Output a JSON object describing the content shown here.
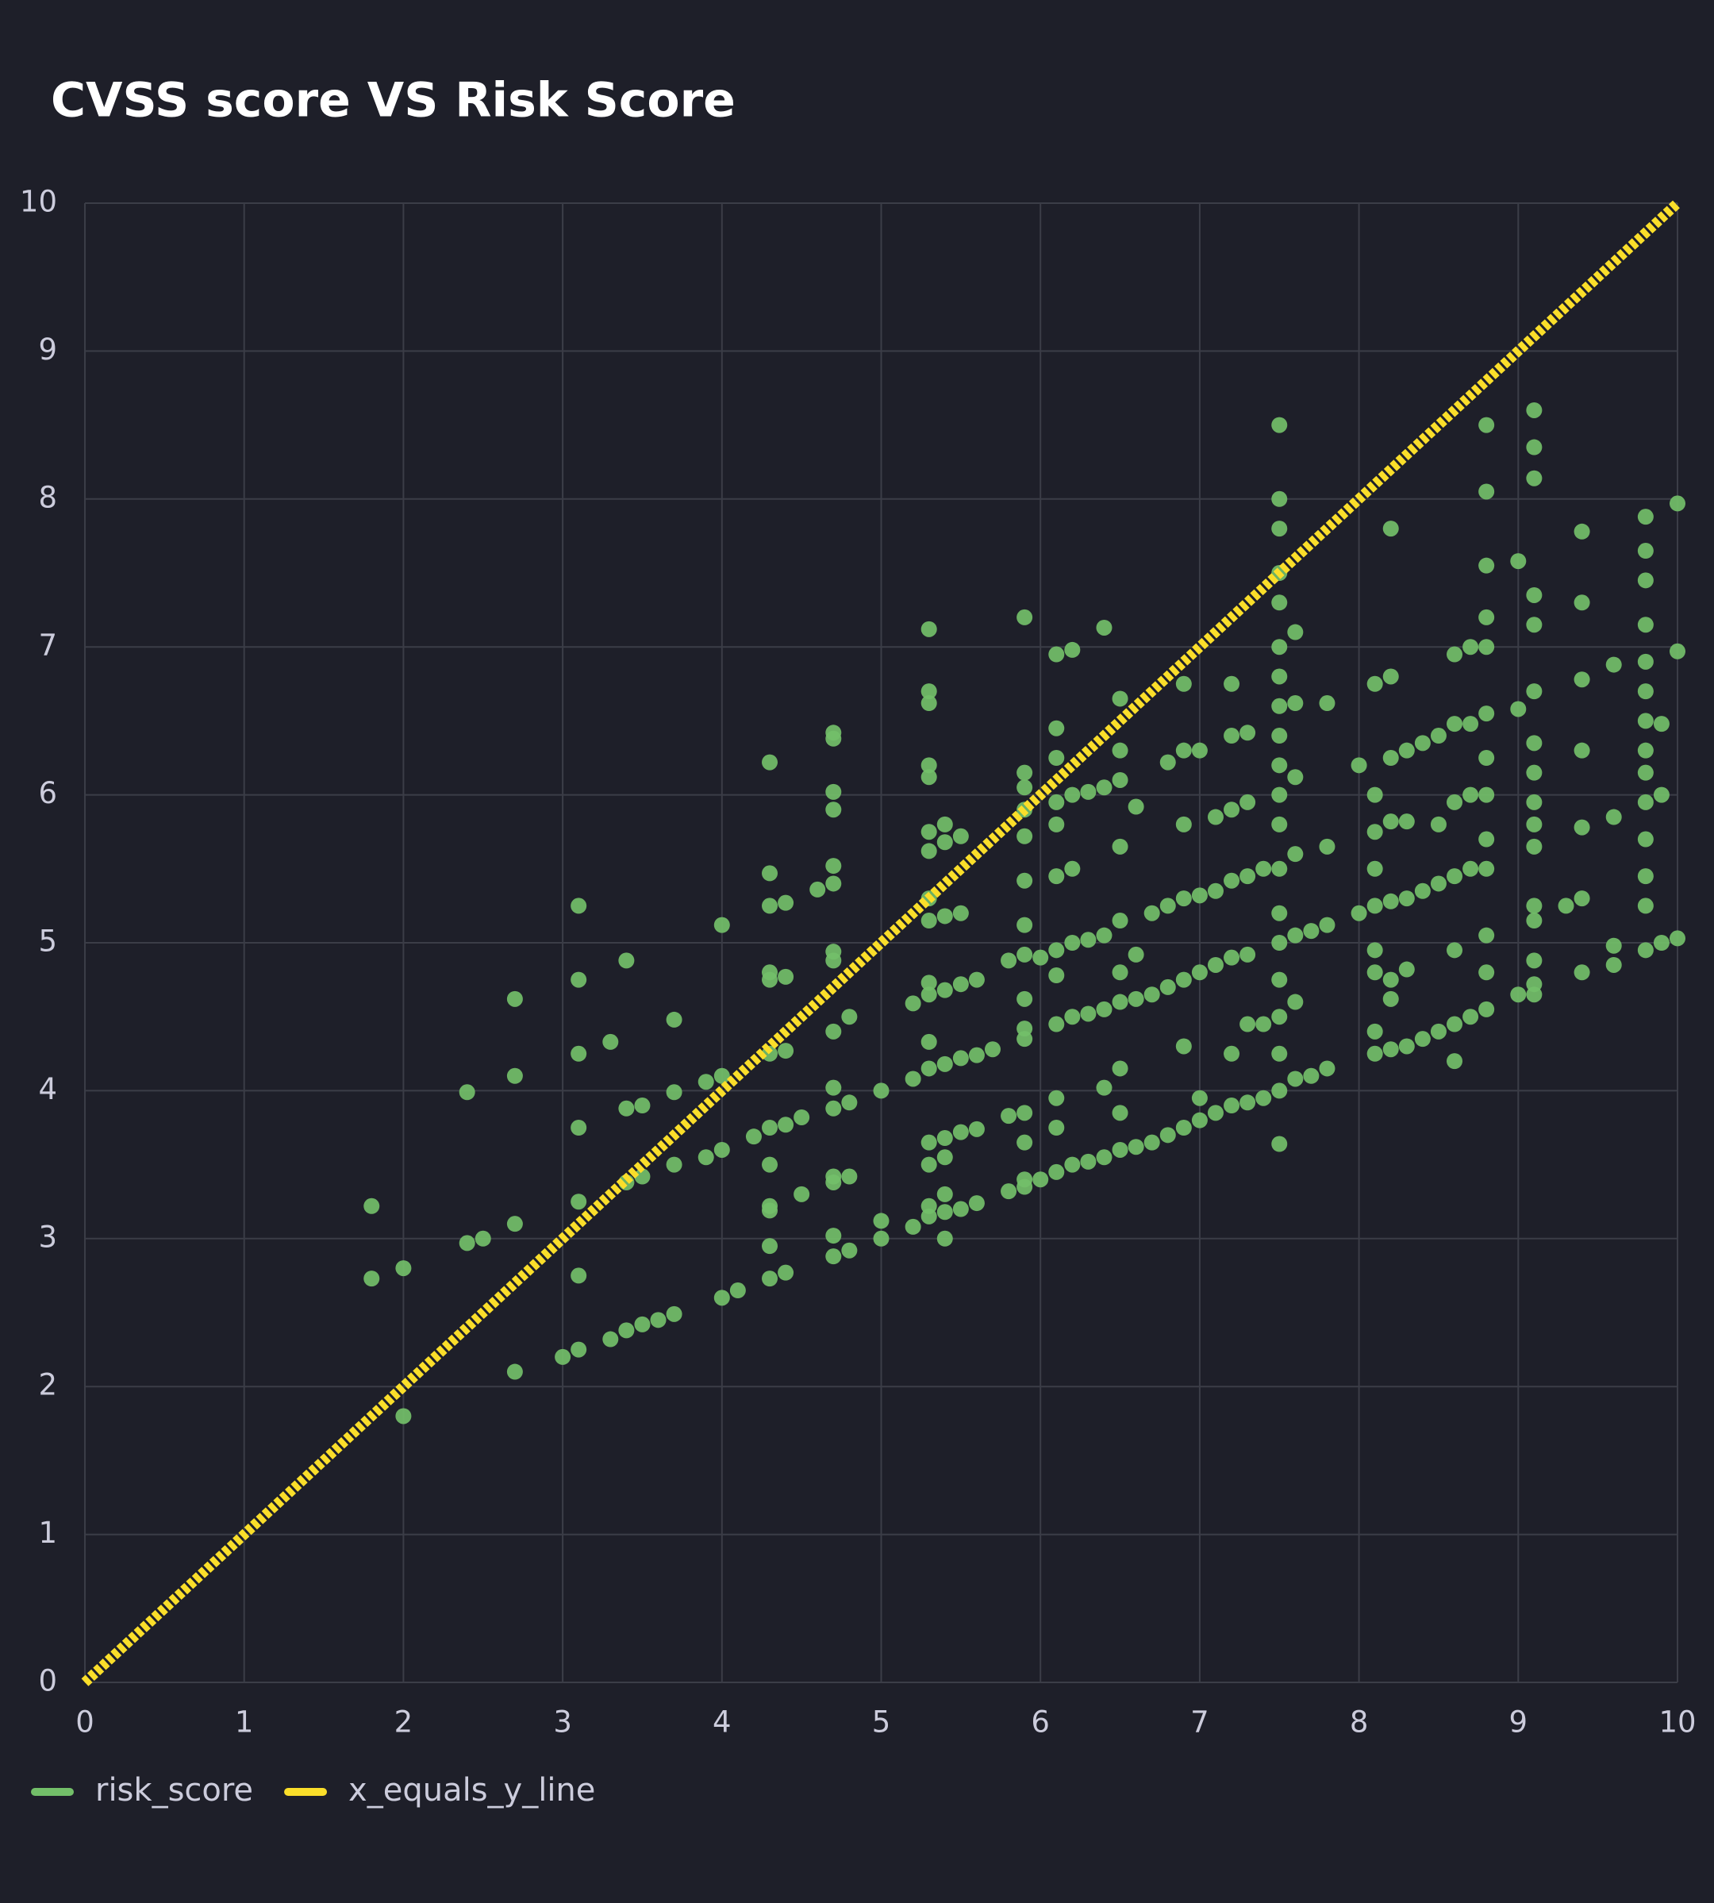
{
  "chart_data": {
    "type": "scatter",
    "title": "CVSS score VS Risk Score",
    "xlim": [
      0,
      10
    ],
    "ylim": [
      0,
      10
    ],
    "xticks": [
      0,
      1,
      2,
      3,
      4,
      5,
      6,
      7,
      8,
      9,
      10
    ],
    "yticks": [
      0,
      1,
      2,
      3,
      4,
      5,
      6,
      7,
      8,
      9,
      10
    ],
    "grid": true,
    "legend": "bottom-left",
    "series": [
      {
        "name": "risk_score",
        "type": "scatter",
        "color": "#73bf69",
        "x": [
          1.8,
          1.8,
          2,
          2,
          2.4,
          2.4,
          2.5,
          2.7,
          2.7,
          2.7,
          2.7,
          3.0,
          3.1,
          3.1,
          3.1,
          3.1,
          3.1,
          3.1,
          3.1,
          3.3,
          3.3,
          3.4,
          3.4,
          3.4,
          3.4,
          3.5,
          3.5,
          3.5,
          3.6,
          3.7,
          3.7,
          3.7,
          3.7,
          3.9,
          3.9,
          4.0,
          4.0,
          4.0,
          4.0,
          4.1,
          4.2,
          4.3,
          4.3,
          4.3,
          4.3,
          4.3,
          4.3,
          4.3,
          4.3,
          4.3,
          4.3,
          4.3,
          4.3,
          4.4,
          4.4,
          4.4,
          4.4,
          4.4,
          4.5,
          4.5,
          4.6,
          4.7,
          4.7,
          4.7,
          4.7,
          4.7,
          4.7,
          4.7,
          4.7,
          4.7,
          4.7,
          4.7,
          4.7,
          4.7,
          4.7,
          4.7,
          4.8,
          4.8,
          4.8,
          4.8,
          5.0,
          5.0,
          5.0,
          5.2,
          5.2,
          5.2,
          5.3,
          5.3,
          5.3,
          5.3,
          5.3,
          5.3,
          5.3,
          5.3,
          5.3,
          5.3,
          5.3,
          5.3,
          5.3,
          5.3,
          5.3,
          5.3,
          5.3,
          5.4,
          5.4,
          5.4,
          5.4,
          5.4,
          5.4,
          5.4,
          5.4,
          5.4,
          5.4,
          5.5,
          5.5,
          5.5,
          5.5,
          5.5,
          5.5,
          5.6,
          5.6,
          5.6,
          5.6,
          5.7,
          5.8,
          5.8,
          5.8,
          5.9,
          5.9,
          5.9,
          5.9,
          5.9,
          5.9,
          5.9,
          5.9,
          5.9,
          5.9,
          5.9,
          5.9,
          5.9,
          5.9,
          5.9,
          6.0,
          6.0,
          6.1,
          6.1,
          6.1,
          6.1,
          6.1,
          6.1,
          6.1,
          6.1,
          6.1,
          6.1,
          6.1,
          6.1,
          6.2,
          6.2,
          6.2,
          6.2,
          6.2,
          6.2,
          6.3,
          6.3,
          6.3,
          6.3,
          6.4,
          6.4,
          6.4,
          6.4,
          6.4,
          6.4,
          6.5,
          6.5,
          6.5,
          6.5,
          6.5,
          6.5,
          6.5,
          6.5,
          6.5,
          6.5,
          6.6,
          6.6,
          6.6,
          6.6,
          6.7,
          6.7,
          6.7,
          6.8,
          6.8,
          6.8,
          6.8,
          6.9,
          6.9,
          6.9,
          6.9,
          6.9,
          6.9,
          6.9,
          7.0,
          7.0,
          7.0,
          7.0,
          7.0,
          7.1,
          7.1,
          7.1,
          7.1,
          7.2,
          7.2,
          7.2,
          7.2,
          7.2,
          7.2,
          7.2,
          7.3,
          7.3,
          7.3,
          7.3,
          7.3,
          7.3,
          7.4,
          7.4,
          7.4,
          7.5,
          7.5,
          7.5,
          7.5,
          7.5,
          7.5,
          7.5,
          7.5,
          7.5,
          7.5,
          7.5,
          7.5,
          7.5,
          7.5,
          7.5,
          7.5,
          7.5,
          7.5,
          7.5,
          7.5,
          7.6,
          7.6,
          7.6,
          7.6,
          7.6,
          7.6,
          7.6,
          7.7,
          7.7,
          7.8,
          7.8,
          7.8,
          7.8,
          8.0,
          8.0,
          8.1,
          8.1,
          8.1,
          8.1,
          8.1,
          8.1,
          8.1,
          8.1,
          8.1,
          8.2,
          8.2,
          8.2,
          8.2,
          8.2,
          8.2,
          8.2,
          8.2,
          8.3,
          8.3,
          8.3,
          8.3,
          8.3,
          8.4,
          8.4,
          8.4,
          8.5,
          8.5,
          8.5,
          8.5,
          8.6,
          8.6,
          8.6,
          8.6,
          8.6,
          8.6,
          8.6,
          8.7,
          8.7,
          8.7,
          8.7,
          8.7,
          8.8,
          8.8,
          8.8,
          8.8,
          8.8,
          8.8,
          8.8,
          8.8,
          8.8,
          8.8,
          8.8,
          8.8,
          8.8,
          9.0,
          9.0,
          9.0,
          9.1,
          9.1,
          9.1,
          9.1,
          9.1,
          9.1,
          9.1,
          9.1,
          9.1,
          9.1,
          9.1,
          9.1,
          9.1,
          9.1,
          9.1,
          9.1,
          9.3,
          9.4,
          9.4,
          9.4,
          9.4,
          9.4,
          9.4,
          9.4,
          9.6,
          9.6,
          9.6,
          9.6,
          9.8,
          9.8,
          9.8,
          9.8,
          9.8,
          9.8,
          9.8,
          9.8,
          9.8,
          9.8,
          9.8,
          9.8,
          9.8,
          9.8,
          9.9,
          9.9,
          9.9,
          10.0,
          10.0,
          10.0
        ],
        "values": [
          3.22,
          2.73,
          2.8,
          1.8,
          2.97,
          3.99,
          3.0,
          3.1,
          2.1,
          4.62,
          4.1,
          2.2,
          5.25,
          4.75,
          4.25,
          3.75,
          3.25,
          2.75,
          2.25,
          4.33,
          2.32,
          4.88,
          3.88,
          3.38,
          2.38,
          3.9,
          3.42,
          2.42,
          2.45,
          4.48,
          3.99,
          3.5,
          2.49,
          4.06,
          3.55,
          5.12,
          4.1,
          3.6,
          2.6,
          2.65,
          3.69,
          6.22,
          5.47,
          5.25,
          4.8,
          4.75,
          4.25,
          3.75,
          3.5,
          3.22,
          2.95,
          2.73,
          3.19,
          5.27,
          4.77,
          4.27,
          3.77,
          2.77,
          3.82,
          3.3,
          5.36,
          6.42,
          6.38,
          6.02,
          5.9,
          5.52,
          5.4,
          4.94,
          4.88,
          4.4,
          4.02,
          3.88,
          3.42,
          3.38,
          3.02,
          2.88,
          4.5,
          3.92,
          3.42,
          2.92,
          4.0,
          3.0,
          3.12,
          4.59,
          4.08,
          3.08,
          7.12,
          6.7,
          6.62,
          6.2,
          6.12,
          5.75,
          5.62,
          5.3,
          5.15,
          4.73,
          4.65,
          4.33,
          4.15,
          3.65,
          3.5,
          3.22,
          3.15,
          5.8,
          5.68,
          5.18,
          4.68,
          4.18,
          3.68,
          3.18,
          3.0,
          3.3,
          3.55,
          5.72,
          5.2,
          4.72,
          4.22,
          3.72,
          3.2,
          4.75,
          4.24,
          3.74,
          3.24,
          4.28,
          4.88,
          3.83,
          3.32,
          7.2,
          6.15,
          6.05,
          5.9,
          5.72,
          5.42,
          5.12,
          4.92,
          4.62,
          4.42,
          4.35,
          3.85,
          3.65,
          3.4,
          3.35,
          4.9,
          3.4,
          6.95,
          6.45,
          6.25,
          5.95,
          5.8,
          5.45,
          4.95,
          4.78,
          4.45,
          3.95,
          3.75,
          3.45,
          6.98,
          6.0,
          5.5,
          5.0,
          4.5,
          3.5,
          6.02,
          5.02,
          4.52,
          3.52,
          7.13,
          6.05,
          5.05,
          4.55,
          4.02,
          3.55,
          6.65,
          6.3,
          6.1,
          5.65,
          5.15,
          4.8,
          4.6,
          4.15,
          3.85,
          3.6,
          5.92,
          4.92,
          4.62,
          3.62,
          5.2,
          4.65,
          3.65,
          6.22,
          5.25,
          4.7,
          3.7,
          6.75,
          6.3,
          5.8,
          5.3,
          4.75,
          4.3,
          3.75,
          6.3,
          5.32,
          4.8,
          3.95,
          3.8,
          5.85,
          5.35,
          4.85,
          3.85,
          6.75,
          6.4,
          5.9,
          5.42,
          4.9,
          4.25,
          3.9,
          6.42,
          5.95,
          5.45,
          4.92,
          4.45,
          3.92,
          5.5,
          4.45,
          3.95,
          8.5,
          8.0,
          7.8,
          7.5,
          7.3,
          7.0,
          6.8,
          6.6,
          6.4,
          6.2,
          6.0,
          5.8,
          5.5,
          5.2,
          5.0,
          4.75,
          4.5,
          4.25,
          4.0,
          3.64,
          7.1,
          6.62,
          6.12,
          5.6,
          5.05,
          4.6,
          4.08,
          5.08,
          4.1,
          6.62,
          5.65,
          5.12,
          4.15,
          6.2,
          5.2,
          6.75,
          6.0,
          5.75,
          5.5,
          5.25,
          4.95,
          4.8,
          4.4,
          4.25,
          7.8,
          6.8,
          6.25,
          5.82,
          5.28,
          4.75,
          4.62,
          4.28,
          6.3,
          5.82,
          5.3,
          4.82,
          4.3,
          6.35,
          5.35,
          4.35,
          6.4,
          5.8,
          5.4,
          4.4,
          6.95,
          6.48,
          5.95,
          5.45,
          4.95,
          4.45,
          4.2,
          7.0,
          6.48,
          6.0,
          5.5,
          4.5,
          8.5,
          8.05,
          7.55,
          7.2,
          7.0,
          6.55,
          6.25,
          6.0,
          5.7,
          5.5,
          5.05,
          4.8,
          4.55,
          7.58,
          6.58,
          4.65,
          8.6,
          8.35,
          8.14,
          7.35,
          7.15,
          6.7,
          6.35,
          6.15,
          5.95,
          5.8,
          5.65,
          5.25,
          5.15,
          4.88,
          4.72,
          4.65,
          5.25,
          7.78,
          7.3,
          6.78,
          6.3,
          5.78,
          5.3,
          4.8,
          6.88,
          5.85,
          4.98,
          4.85,
          7.88,
          7.65,
          7.45,
          7.15,
          6.9,
          6.7,
          6.5,
          6.3,
          6.15,
          5.95,
          5.7,
          5.45,
          5.25,
          4.95,
          6.48,
          6.0,
          5.0,
          7.97,
          6.97,
          5.03
        ]
      },
      {
        "name": "x_equals_y_line",
        "type": "line",
        "color": "#fade2a",
        "x": [
          0,
          10
        ],
        "values": [
          0,
          10
        ]
      }
    ]
  }
}
